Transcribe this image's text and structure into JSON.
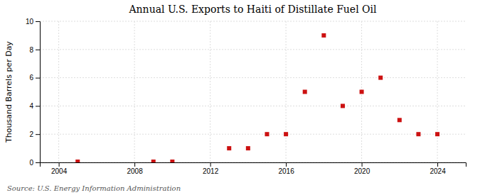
{
  "chart_data": {
    "type": "scatter",
    "title": "Annual U.S. Exports to Haiti of Distillate Fuel Oil",
    "y_label": "Thousand Barrels per Day",
    "source": "Source: U.S. Energy Information Administration",
    "x": [
      2005,
      2009,
      2010,
      2013,
      2014,
      2015,
      2016,
      2017,
      2018,
      2019,
      2020,
      2021,
      2022,
      2023,
      2024
    ],
    "values": [
      0.05,
      0.05,
      0.05,
      1.0,
      1.0,
      2.0,
      2.0,
      5.0,
      9.0,
      4.0,
      5.0,
      6.0,
      3.0,
      2.0,
      2.0
    ],
    "xlim": [
      2003.0,
      2025.5
    ],
    "ylim": [
      0,
      10
    ],
    "xticks": [
      2004,
      2008,
      2012,
      2016,
      2020,
      2024
    ],
    "yticks": [
      0,
      2,
      4,
      6,
      8,
      10
    ],
    "color": "#cc1111",
    "marker": "square",
    "grid": true
  }
}
